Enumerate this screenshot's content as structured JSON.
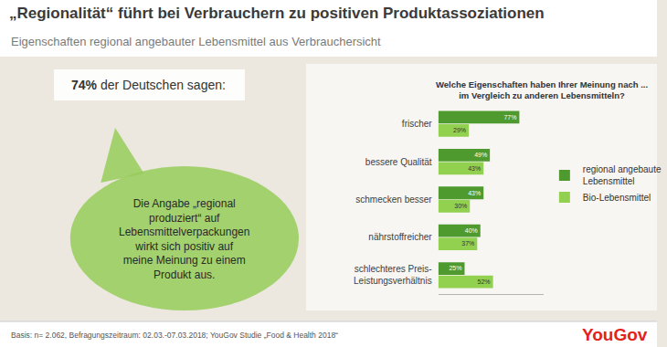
{
  "chart_data": {
    "type": "bar",
    "orientation": "horizontal",
    "title": "„Regionalität“ führt bei Verbrauchern zu positiven Produktassoziationen",
    "subtitle": "Eigenschaften regional angebauter Lebensmittel aus Verbrauchersicht",
    "callout": {
      "highlight": "74%",
      "text": "der Deutschen sagen:"
    },
    "bubble_lines": [
      "Die Angabe „regional",
      "produziert“ auf",
      "Lebensmittelverpackungen",
      "wirkt sich positiv auf",
      "meine Meinung zu einem",
      "Produkt aus."
    ],
    "question_lines": [
      "Welche Eigenschaften haben Ihrer Meinung nach ...",
      "im Vergleich zu anderen Lebensmitteln?"
    ],
    "footnote": "Basis: n= 2.062, Befragungszeitraum: 02.03.-07.03.2018; YouGov Studie „Food & Health 2018“",
    "source_logo": "YouGov",
    "categories": [
      "frischer",
      "bessere Qualität",
      "schmecken besser",
      "nährstoffreicher",
      "schlechteres Preis-Leistungsverhältnis"
    ],
    "series": [
      {
        "name": "regional angebaute Lebensmittel",
        "color": "#4e9a2e",
        "values": [
          77,
          49,
          43,
          40,
          25
        ],
        "value_labels": [
          "77%",
          "49%",
          "43%",
          "40%",
          "25%"
        ]
      },
      {
        "name": "Bio-Lebensmittel",
        "color": "#92d050",
        "values": [
          29,
          43,
          30,
          37,
          52
        ],
        "value_labels": [
          "29%",
          "43%",
          "30%",
          "37%",
          "52%"
        ]
      }
    ],
    "xlim": [
      0,
      100
    ],
    "data_labels": true,
    "tick_labels": "y",
    "grid": false,
    "legend": "right"
  }
}
